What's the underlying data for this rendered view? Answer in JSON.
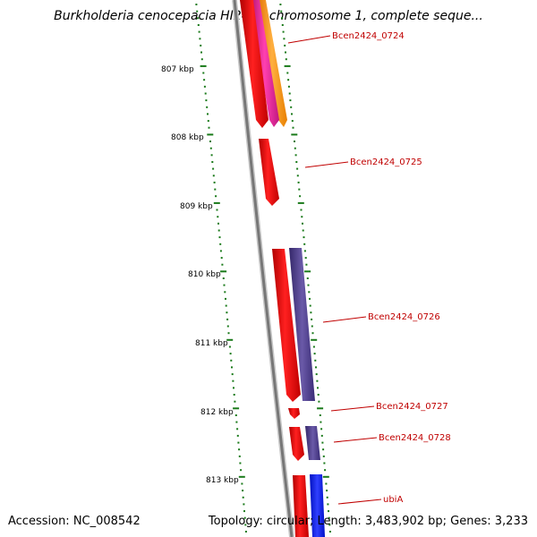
{
  "title": "Burkholderia cenocepacia HI2424 chromosome 1, complete seque...",
  "accession": "Accession: NC_008542",
  "summary": "Topology: circular; Length: 3,483,902 bp; Genes: 3,233",
  "kbp_labels": [
    "807 kbp",
    "808 kbp",
    "809 kbp",
    "810 kbp",
    "811 kbp",
    "812 kbp",
    "813 kbp"
  ],
  "gene_labels": [
    "Bcen2424_0724",
    "Bcen2424_0725",
    "Bcen2424_0726",
    "Bcen2424_0727",
    "Bcen2424_0728",
    "ubiA"
  ],
  "colors": {
    "backbone": "#808080",
    "tick": "#1a7a1a",
    "forward_gene": "#ff0000",
    "reverse_gene": "#4b3c8c",
    "label": "#c00000",
    "magenta_feature": "#e0209a",
    "orange_feature": "#ff9a1a",
    "blue_feature": "#1020e8"
  }
}
